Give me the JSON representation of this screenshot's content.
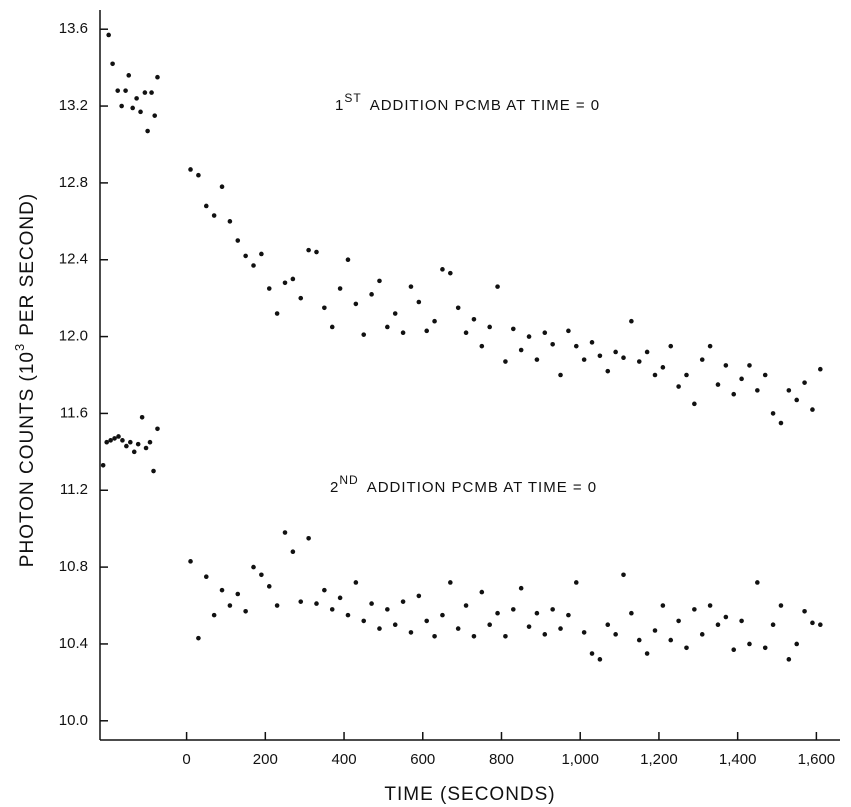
{
  "chart_data": {
    "type": "scatter",
    "x_label": "TIME (SECONDS)",
    "y_label": {
      "main": "PHOTON COUNTS (10",
      "sup": "3",
      "rest": "PER SECOND)"
    },
    "annotations": [
      {
        "main": "1",
        "sup": "ST",
        "rest": "ADDITION PCMB AT TIME = 0"
      },
      {
        "main": "2",
        "sup": "ND",
        "rest": "ADDITION PCMB AT TIME = 0"
      }
    ],
    "xlim": [
      -220,
      1660
    ],
    "ylim": [
      9.9,
      13.7
    ],
    "xticks": [
      0,
      200,
      400,
      600,
      800,
      {
        "value": 1000,
        "label": "1,000"
      },
      {
        "value": 1200,
        "label": "1,200"
      },
      {
        "value": 1400,
        "label": "1,400"
      },
      {
        "value": 1600,
        "label": "1,600"
      }
    ],
    "yticks": [
      {
        "value": 10,
        "label": "10.0"
      },
      10.4,
      10.8,
      11.2,
      11.6,
      {
        "value": 12,
        "label": "12.0"
      },
      12.4,
      12.8,
      13.2,
      13.6
    ],
    "series": [
      {
        "color": "#111111",
        "x": [
          -198,
          -188,
          -175,
          -165,
          -155,
          -147,
          -137,
          -127,
          -117,
          -106,
          -99,
          -89,
          -81,
          -74,
          10,
          30,
          50,
          70,
          90,
          110,
          130,
          150,
          170,
          190,
          210,
          230,
          250,
          270,
          290,
          310,
          330,
          350,
          370,
          390,
          410,
          430,
          450,
          470,
          490,
          510,
          530,
          550,
          570,
          590,
          610,
          630,
          650,
          670,
          690,
          710,
          730,
          750,
          770,
          790,
          810,
          830,
          850,
          870,
          890,
          910,
          930,
          950,
          970,
          990,
          1010,
          1030,
          1050,
          1070,
          1090,
          1110,
          1130,
          1150,
          1170,
          1190,
          1210,
          1230,
          1250,
          1270,
          1290,
          1310,
          1330,
          1350,
          1370,
          1390,
          1410,
          1430,
          1450,
          1470,
          1490,
          1510,
          1530,
          1550,
          1570,
          1590,
          1610
        ],
        "values": [
          13.57,
          13.42,
          13.28,
          13.2,
          13.28,
          13.36,
          13.19,
          13.24,
          13.17,
          13.27,
          13.07,
          13.27,
          13.15,
          13.35,
          12.87,
          12.84,
          12.68,
          12.63,
          12.78,
          12.6,
          12.5,
          12.42,
          12.37,
          12.43,
          12.25,
          12.12,
          12.28,
          12.3,
          12.2,
          12.45,
          12.44,
          12.15,
          12.05,
          12.25,
          12.4,
          12.17,
          12.01,
          12.22,
          12.29,
          12.05,
          12.12,
          12.02,
          12.26,
          12.18,
          12.03,
          12.08,
          12.35,
          12.33,
          12.15,
          12.02,
          12.09,
          11.95,
          12.05,
          12.26,
          11.87,
          12.04,
          11.93,
          12.0,
          11.88,
          12.02,
          11.96,
          11.8,
          12.03,
          11.95,
          11.88,
          11.97,
          11.9,
          11.82,
          11.92,
          11.89,
          12.08,
          11.87,
          11.92,
          11.8,
          11.84,
          11.95,
          11.74,
          11.8,
          11.65,
          11.88,
          11.95,
          11.75,
          11.85,
          11.7,
          11.78,
          11.85,
          11.72,
          11.8,
          11.6,
          11.55,
          11.72,
          11.67,
          11.76,
          11.62,
          11.83
        ]
      },
      {
        "color": "#111111",
        "x": [
          -212,
          -203,
          -193,
          -183,
          -173,
          -163,
          -153,
          -143,
          -133,
          -123,
          -113,
          -103,
          -93,
          -84,
          -74,
          10,
          30,
          50,
          70,
          90,
          110,
          130,
          150,
          170,
          190,
          210,
          230,
          250,
          270,
          290,
          310,
          330,
          350,
          370,
          390,
          410,
          430,
          450,
          470,
          490,
          510,
          530,
          550,
          570,
          590,
          610,
          630,
          650,
          670,
          690,
          710,
          730,
          750,
          770,
          790,
          810,
          830,
          850,
          870,
          890,
          910,
          930,
          950,
          970,
          990,
          1010,
          1030,
          1050,
          1070,
          1090,
          1110,
          1130,
          1150,
          1170,
          1190,
          1210,
          1230,
          1250,
          1270,
          1290,
          1310,
          1330,
          1350,
          1370,
          1390,
          1410,
          1430,
          1450,
          1470,
          1490,
          1510,
          1530,
          1550,
          1570,
          1590,
          1610
        ],
        "values": [
          11.33,
          11.45,
          11.46,
          11.47,
          11.48,
          11.46,
          11.43,
          11.45,
          11.4,
          11.44,
          11.58,
          11.42,
          11.45,
          11.3,
          11.52,
          10.83,
          10.43,
          10.75,
          10.55,
          10.68,
          10.6,
          10.66,
          10.57,
          10.8,
          10.76,
          10.7,
          10.6,
          10.98,
          10.88,
          10.62,
          10.95,
          10.61,
          10.68,
          10.58,
          10.64,
          10.55,
          10.72,
          10.52,
          10.61,
          10.48,
          10.58,
          10.5,
          10.62,
          10.46,
          10.65,
          10.52,
          10.44,
          10.55,
          10.72,
          10.48,
          10.6,
          10.44,
          10.67,
          10.5,
          10.56,
          10.44,
          10.58,
          10.69,
          10.49,
          10.56,
          10.45,
          10.58,
          10.48,
          10.55,
          10.72,
          10.46,
          10.35,
          10.32,
          10.5,
          10.45,
          10.76,
          10.56,
          10.42,
          10.35,
          10.47,
          10.6,
          10.42,
          10.52,
          10.38,
          10.58,
          10.45,
          10.6,
          10.5,
          10.54,
          10.37,
          10.52,
          10.4,
          10.72,
          10.38,
          10.5,
          10.6,
          10.32,
          10.4,
          10.57,
          10.51,
          10.5
        ]
      }
    ]
  }
}
